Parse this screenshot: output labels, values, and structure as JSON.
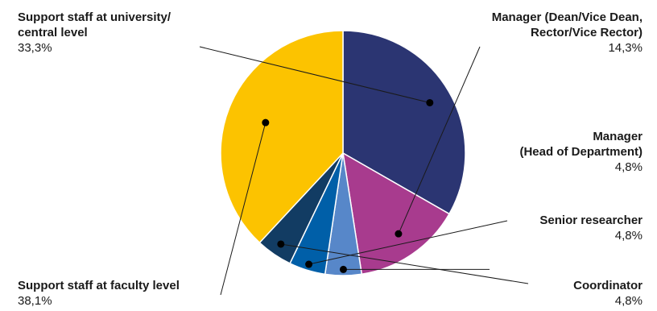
{
  "chart_data": {
    "type": "pie",
    "slices": [
      {
        "label": "Support staff at university/\ncentral level",
        "value_text": "33,3%",
        "value": 33.3,
        "color": "#2b3572"
      },
      {
        "label": "Manager (Dean/Vice Dean,\nRector/Vice Rector)",
        "value_text": "14,3%",
        "value": 14.3,
        "color": "#a83b8e"
      },
      {
        "label": "Manager\n(Head of Department)",
        "value_text": "4,8%",
        "value": 4.8,
        "color": "#5787c9"
      },
      {
        "label": "Senior researcher",
        "value_text": "4,8%",
        "value": 4.8,
        "color": "#005fa8"
      },
      {
        "label": "Coordinator",
        "value_text": "4,8%",
        "value": 4.8,
        "color": "#123c63"
      },
      {
        "label": "Support staff at faculty level",
        "value_text": "38,1%",
        "value": 38.1,
        "color": "#fcc300"
      }
    ],
    "start_angle_deg": 270,
    "direction": "clockwise",
    "leader_line_color": "#1a1a1a"
  }
}
